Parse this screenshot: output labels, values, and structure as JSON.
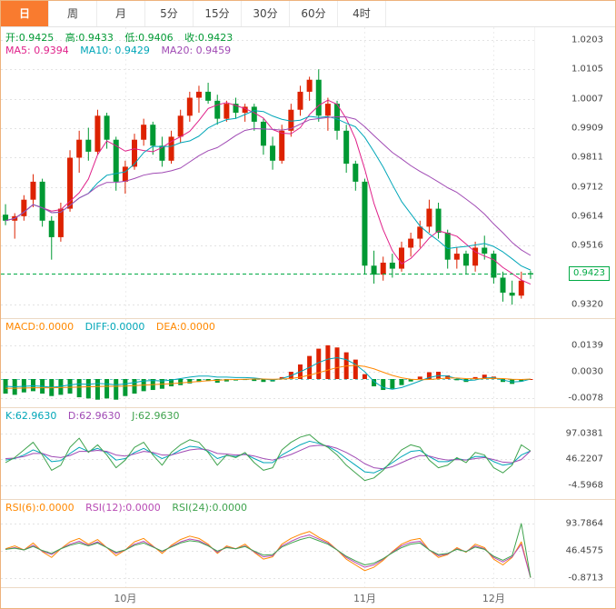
{
  "tabs": [
    {
      "label": "日",
      "active": true
    },
    {
      "label": "周",
      "active": false
    },
    {
      "label": "月",
      "active": false
    },
    {
      "label": "5分",
      "active": false
    },
    {
      "label": "15分",
      "active": false
    },
    {
      "label": "30分",
      "active": false
    },
    {
      "label": "60分",
      "active": false
    },
    {
      "label": "4时",
      "active": false
    }
  ],
  "main_info": {
    "open": "开:0.9425",
    "high": "高:0.9433",
    "low": "低:0.9406",
    "close": "收:0.9423",
    "ma5": "MA5: 0.9394",
    "ma10": "MA10: 0.9429",
    "ma20": "MA20: 0.9459"
  },
  "macd_info": {
    "macd": "MACD:0.0000",
    "diff": "DIFF:0.0000",
    "dea": "DEA:0.0000"
  },
  "kdj_info": {
    "k": "K:62.9630",
    "d": "D:62.9630",
    "j": "J:62.9630"
  },
  "rsi_info": {
    "rsi6": "RSI(6):0.0000",
    "rsi12": "RSI(12):0.0000",
    "rsi24": "RSI(24):0.0000"
  },
  "current_price": {
    "label": "0.9423",
    "value": 0.9423
  },
  "x_axis": {
    "months": [
      {
        "label": "10月",
        "index": 13
      },
      {
        "label": "11月",
        "index": 39
      },
      {
        "label": "12月",
        "index": 53
      }
    ]
  },
  "colors": {
    "up": "#dd2200",
    "down": "#009933",
    "text_green": "#009933",
    "ma5": "#e0218a",
    "ma10": "#00a6b8",
    "ma20": "#a04ab4",
    "macd_label": "#ff8800",
    "diff": "#00a6b8",
    "dea": "#ff8800",
    "k": "#00a6b8",
    "d": "#a04ab4",
    "j": "#3fa34d",
    "rsi6": "#ff8800",
    "rsi12": "#b84ab4",
    "rsi24": "#3fa34d",
    "price_line": "#00aa44",
    "tab_active_bg": "#f97b2f",
    "axis_text": "#444"
  },
  "chart_data": [
    {
      "type": "candlestick",
      "title": "",
      "ylim": [
        0.9275,
        1.0245
      ],
      "y_ticks": [
        {
          "label": "1.0203",
          "value": 1.0203
        },
        {
          "label": "1.0105",
          "value": 1.0105
        },
        {
          "label": "1.0007",
          "value": 1.0007
        },
        {
          "label": "0.9909",
          "value": 0.9909
        },
        {
          "label": "0.9811",
          "value": 0.9811
        },
        {
          "label": "0.9712",
          "value": 0.9712
        },
        {
          "label": "0.9614",
          "value": 0.9614
        },
        {
          "label": "0.9516",
          "value": 0.9516
        },
        {
          "label": "0.9320",
          "value": 0.932
        }
      ],
      "ma_periods": [
        5,
        10,
        20
      ],
      "ma_colors": [
        "ma5",
        "ma10",
        "ma20"
      ],
      "candles": [
        [
          0.962,
          0.9655,
          0.9585,
          0.96
        ],
        [
          0.96,
          0.9625,
          0.954,
          0.9615
        ],
        [
          0.9615,
          0.9685,
          0.96,
          0.967
        ],
        [
          0.967,
          0.9755,
          0.9645,
          0.973
        ],
        [
          0.973,
          0.974,
          0.958,
          0.96
        ],
        [
          0.96,
          0.9615,
          0.947,
          0.9545
        ],
        [
          0.9545,
          0.966,
          0.953,
          0.964
        ],
        [
          0.964,
          0.9835,
          0.963,
          0.981
        ],
        [
          0.981,
          0.99,
          0.976,
          0.987
        ],
        [
          0.987,
          0.991,
          0.98,
          0.983
        ],
        [
          0.983,
          0.997,
          0.982,
          0.995
        ],
        [
          0.995,
          0.996,
          0.984,
          0.987
        ],
        [
          0.987,
          0.988,
          0.97,
          0.973
        ],
        [
          0.973,
          0.98,
          0.969,
          0.978
        ],
        [
          0.978,
          0.989,
          0.977,
          0.987
        ],
        [
          0.987,
          0.994,
          0.985,
          0.992
        ],
        [
          0.992,
          0.993,
          0.982,
          0.985
        ],
        [
          0.985,
          0.988,
          0.978,
          0.98
        ],
        [
          0.98,
          0.99,
          0.979,
          0.988
        ],
        [
          0.988,
          0.997,
          0.986,
          0.995
        ],
        [
          0.995,
          1.003,
          0.993,
          1.001
        ],
        [
          1.001,
          1.005,
          0.996,
          1.003
        ],
        [
          1.003,
          1.006,
          0.999,
          1.0
        ],
        [
          1.0,
          1.002,
          0.992,
          0.994
        ],
        [
          0.994,
          1.0,
          0.993,
          0.999
        ],
        [
          0.999,
          1.001,
          0.994,
          0.996
        ],
        [
          0.996,
          0.999,
          0.993,
          0.998
        ],
        [
          0.998,
          0.999,
          0.99,
          0.993
        ],
        [
          0.993,
          0.994,
          0.982,
          0.985
        ],
        [
          0.985,
          0.988,
          0.977,
          0.98
        ],
        [
          0.98,
          0.992,
          0.979,
          0.99
        ],
        [
          0.99,
          0.999,
          0.988,
          0.997
        ],
        [
          0.997,
          1.005,
          0.995,
          1.003
        ],
        [
          1.003,
          1.008,
          1.0,
          1.007
        ],
        [
          1.007,
          1.0105,
          0.993,
          0.995
        ],
        [
          0.995,
          1.001,
          0.99,
          0.999
        ],
        [
          0.999,
          1.0,
          0.987,
          0.99
        ],
        [
          0.99,
          0.992,
          0.976,
          0.979
        ],
        [
          0.979,
          0.98,
          0.97,
          0.973
        ],
        [
          0.973,
          0.974,
          0.942,
          0.945
        ],
        [
          0.945,
          0.95,
          0.939,
          0.942
        ],
        [
          0.942,
          0.948,
          0.94,
          0.946
        ],
        [
          0.946,
          0.949,
          0.941,
          0.944
        ],
        [
          0.944,
          0.953,
          0.943,
          0.951
        ],
        [
          0.951,
          0.956,
          0.948,
          0.954
        ],
        [
          0.954,
          0.96,
          0.951,
          0.958
        ],
        [
          0.958,
          0.967,
          0.956,
          0.964
        ],
        [
          0.964,
          0.966,
          0.954,
          0.956
        ],
        [
          0.956,
          0.957,
          0.944,
          0.947
        ],
        [
          0.947,
          0.951,
          0.944,
          0.949
        ],
        [
          0.949,
          0.95,
          0.942,
          0.945
        ],
        [
          0.945,
          0.953,
          0.943,
          0.951
        ],
        [
          0.951,
          0.955,
          0.947,
          0.949
        ],
        [
          0.949,
          0.95,
          0.939,
          0.941
        ],
        [
          0.941,
          0.943,
          0.933,
          0.936
        ],
        [
          0.936,
          0.94,
          0.932,
          0.935
        ],
        [
          0.935,
          0.943,
          0.934,
          0.94
        ],
        [
          0.9425,
          0.9433,
          0.9406,
          0.9423
        ]
      ]
    },
    {
      "type": "bar",
      "name": "MACD",
      "ylim": [
        -0.0116,
        0.0247
      ],
      "y_ticks": [
        {
          "label": "0.0139",
          "value": 0.0139
        },
        {
          "label": "0.0030",
          "value": 0.003
        },
        {
          "label": "-0.0078",
          "value": -0.0078
        }
      ],
      "histogram": [
        -0.006,
        -0.0065,
        -0.0055,
        -0.005,
        -0.006,
        -0.007,
        -0.0065,
        -0.006,
        -0.0075,
        -0.008,
        -0.0085,
        -0.008,
        -0.0085,
        -0.007,
        -0.006,
        -0.005,
        -0.0045,
        -0.004,
        -0.003,
        -0.0025,
        -0.0018,
        -0.0012,
        -0.0008,
        -0.0015,
        -0.001,
        -0.0006,
        -0.0004,
        -0.0008,
        -0.0012,
        -0.001,
        0.0008,
        0.003,
        0.006,
        0.0095,
        0.0125,
        0.0139,
        0.013,
        0.011,
        0.008,
        0.002,
        -0.003,
        -0.0045,
        -0.004,
        -0.0025,
        -0.001,
        0.001,
        0.0028,
        0.003,
        0.0015,
        -0.0005,
        -0.0012,
        0.0008,
        0.0018,
        0.001,
        -0.0012,
        -0.002,
        -0.001,
        0.0
      ],
      "series": [
        {
          "name": "DIFF",
          "color": "diff",
          "values": [
            -0.003,
            -0.0032,
            -0.003,
            -0.0028,
            -0.003,
            -0.0034,
            -0.003,
            -0.0024,
            -0.002,
            -0.0022,
            -0.0018,
            -0.002,
            -0.0024,
            -0.002,
            -0.0014,
            -0.0008,
            -0.0006,
            -0.0008,
            -0.0004,
            0.0002,
            0.0008,
            0.0012,
            0.0012,
            0.0008,
            0.0008,
            0.0006,
            0.0006,
            0.0004,
            0.0,
            -0.0004,
            0.0002,
            0.0014,
            0.003,
            0.0048,
            0.0068,
            0.0082,
            0.0088,
            0.008,
            0.006,
            0.003,
            -0.001,
            -0.0035,
            -0.0042,
            -0.0035,
            -0.0022,
            -0.0008,
            0.0006,
            0.0014,
            0.0012,
            0.0002,
            -0.0006,
            -0.0004,
            0.0004,
            0.0006,
            -0.0004,
            -0.0012,
            -0.001,
            0.0
          ]
        },
        {
          "name": "DEA",
          "color": "dea",
          "values": [
            -0.0038,
            -0.0038,
            -0.0037,
            -0.0036,
            -0.0036,
            -0.0036,
            -0.0035,
            -0.0034,
            -0.0033,
            -0.0032,
            -0.0031,
            -0.003,
            -0.003,
            -0.0029,
            -0.0027,
            -0.0025,
            -0.0023,
            -0.0021,
            -0.0019,
            -0.0016,
            -0.0013,
            -0.001,
            -0.0007,
            -0.0005,
            -0.0003,
            -0.0002,
            -0.0001,
            0.0,
            0.0,
            -0.0001,
            0.0,
            0.0002,
            0.0008,
            0.0016,
            0.0026,
            0.0037,
            0.0047,
            0.0054,
            0.0056,
            0.0052,
            0.0042,
            0.0028,
            0.0015,
            0.0005,
            -0.0001,
            -0.0003,
            -0.0002,
            0.0001,
            0.0004,
            0.0004,
            0.0002,
            0.0001,
            0.0002,
            0.0003,
            0.0002,
            -0.0001,
            -0.0002,
            0.0
          ]
        }
      ]
    },
    {
      "type": "line",
      "name": "KDJ",
      "ylim": [
        -31.34,
        146.96
      ],
      "y_ticks": [
        {
          "label": "97.0381",
          "value": 97.0381
        },
        {
          "label": "46.2207",
          "value": 46.2207
        },
        {
          "label": "-4.5968",
          "value": -4.5968
        }
      ],
      "series": [
        {
          "name": "K",
          "color": "k",
          "values": [
            45,
            48,
            55,
            65,
            58,
            42,
            44,
            58,
            70,
            62,
            68,
            60,
            45,
            48,
            60,
            68,
            58,
            48,
            55,
            65,
            72,
            70,
            62,
            48,
            54,
            52,
            57,
            48,
            40,
            40,
            55,
            65,
            75,
            82,
            78,
            72,
            62,
            48,
            35,
            22,
            20,
            28,
            40,
            52,
            62,
            64,
            52,
            42,
            42,
            48,
            45,
            52,
            52,
            42,
            35,
            38,
            55,
            62.96
          ]
        },
        {
          "name": "D",
          "color": "d",
          "values": [
            48,
            49,
            52,
            58,
            58,
            52,
            50,
            54,
            62,
            62,
            64,
            62,
            55,
            53,
            57,
            62,
            60,
            55,
            55,
            60,
            65,
            67,
            65,
            58,
            57,
            55,
            56,
            53,
            48,
            45,
            50,
            56,
            64,
            72,
            74,
            73,
            68,
            60,
            50,
            38,
            30,
            28,
            32,
            40,
            48,
            54,
            53,
            48,
            45,
            46,
            45,
            48,
            50,
            46,
            41,
            40,
            46,
            62.96
          ]
        },
        {
          "name": "J",
          "color": "j",
          "values": [
            40,
            50,
            65,
            80,
            55,
            25,
            35,
            70,
            88,
            60,
            75,
            55,
            30,
            45,
            70,
            80,
            55,
            35,
            60,
            75,
            85,
            80,
            60,
            35,
            55,
            50,
            60,
            40,
            25,
            30,
            65,
            80,
            90,
            95,
            80,
            70,
            55,
            35,
            20,
            5,
            10,
            25,
            45,
            65,
            75,
            70,
            45,
            30,
            35,
            50,
            40,
            60,
            55,
            30,
            20,
            35,
            75,
            62.96
          ]
        }
      ]
    },
    {
      "type": "line",
      "name": "RSI",
      "ylim": [
        -16.65,
        134.8
      ],
      "y_ticks": [
        {
          "label": "93.7864",
          "value": 93.7864
        },
        {
          "label": "46.4575",
          "value": 46.4575
        },
        {
          "label": "-0.8713",
          "value": -0.8713
        }
      ],
      "series": [
        {
          "name": "RSI6",
          "color": "rsi6",
          "values": [
            50,
            55,
            48,
            60,
            45,
            35,
            50,
            62,
            68,
            58,
            66,
            52,
            38,
            48,
            62,
            68,
            55,
            42,
            56,
            66,
            72,
            68,
            58,
            42,
            55,
            50,
            58,
            44,
            32,
            36,
            58,
            68,
            75,
            80,
            70,
            62,
            48,
            32,
            22,
            12,
            18,
            30,
            45,
            58,
            65,
            68,
            48,
            35,
            40,
            52,
            44,
            58,
            52,
            32,
            22,
            35,
            62,
            0
          ]
        },
        {
          "name": "RSI12",
          "color": "rsi12",
          "values": [
            49,
            52,
            48,
            56,
            46,
            40,
            50,
            58,
            63,
            56,
            62,
            52,
            42,
            48,
            58,
            63,
            54,
            45,
            54,
            62,
            67,
            64,
            56,
            44,
            53,
            50,
            55,
            45,
            36,
            38,
            55,
            63,
            70,
            74,
            67,
            60,
            48,
            35,
            26,
            18,
            22,
            32,
            44,
            55,
            61,
            63,
            48,
            38,
            41,
            50,
            45,
            55,
            50,
            35,
            27,
            36,
            58,
            0
          ]
        },
        {
          "name": "RSI24",
          "color": "rsi24",
          "values": [
            49,
            51,
            48,
            54,
            47,
            42,
            50,
            56,
            60,
            55,
            60,
            52,
            44,
            48,
            56,
            60,
            53,
            46,
            53,
            60,
            64,
            62,
            55,
            46,
            52,
            50,
            54,
            46,
            39,
            40,
            53,
            60,
            66,
            70,
            64,
            58,
            48,
            37,
            29,
            22,
            25,
            33,
            43,
            52,
            58,
            60,
            48,
            40,
            42,
            49,
            45,
            53,
            49,
            37,
            30,
            38,
            93.79,
            0
          ]
        }
      ]
    }
  ]
}
